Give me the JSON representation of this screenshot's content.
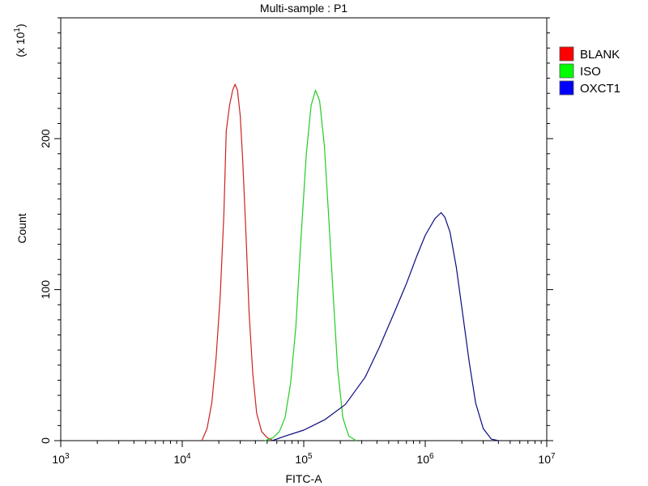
{
  "chart_data": {
    "type": "line",
    "title": "Multi-sample : P1",
    "xlabel": "FITC-A",
    "ylabel": "Count",
    "y_multiplier_label": "(x 10",
    "y_multiplier_exp": "1",
    "x_scale": "log",
    "xlim": [
      1000,
      10000000
    ],
    "ylim": [
      0,
      280
    ],
    "x_ticks": [
      {
        "base": "10",
        "exp": "3",
        "value": 1000
      },
      {
        "base": "10",
        "exp": "4",
        "value": 10000
      },
      {
        "base": "10",
        "exp": "5",
        "value": 100000
      },
      {
        "base": "10",
        "exp": "6",
        "value": 1000000
      },
      {
        "base": "10",
        "exp": "7",
        "value": 10000000
      }
    ],
    "y_ticks": [
      {
        "label": "0",
        "value": 0
      },
      {
        "label": "100",
        "value": 100
      },
      {
        "label": "200",
        "value": 200
      }
    ],
    "grid": false,
    "legend_position": "top-right",
    "series": [
      {
        "name": "BLANK",
        "color": "#cc2222",
        "legend_color": "#ff0000",
        "points": [
          [
            14500,
            0
          ],
          [
            16000,
            8
          ],
          [
            17500,
            25
          ],
          [
            19000,
            55
          ],
          [
            20500,
            95
          ],
          [
            22000,
            150
          ],
          [
            23000,
            205
          ],
          [
            24500,
            222
          ],
          [
            26000,
            232
          ],
          [
            27200,
            236
          ],
          [
            28500,
            232
          ],
          [
            30000,
            215
          ],
          [
            31500,
            185
          ],
          [
            33500,
            135
          ],
          [
            35500,
            85
          ],
          [
            38000,
            45
          ],
          [
            41000,
            18
          ],
          [
            45000,
            6
          ],
          [
            50000,
            2
          ],
          [
            56000,
            0
          ]
        ]
      },
      {
        "name": "ISO",
        "color": "#22cc22",
        "legend_color": "#00ff00",
        "points": [
          [
            48000,
            0
          ],
          [
            56000,
            2
          ],
          [
            63000,
            6
          ],
          [
            70000,
            15
          ],
          [
            78000,
            38
          ],
          [
            86000,
            75
          ],
          [
            95000,
            135
          ],
          [
            105000,
            190
          ],
          [
            115000,
            222
          ],
          [
            125000,
            232
          ],
          [
            135000,
            225
          ],
          [
            148000,
            195
          ],
          [
            160000,
            150
          ],
          [
            175000,
            95
          ],
          [
            190000,
            48
          ],
          [
            210000,
            15
          ],
          [
            235000,
            3
          ],
          [
            270000,
            0
          ]
        ]
      },
      {
        "name": "OXCT1",
        "color": "#0a0a80",
        "legend_color": "#0000ff",
        "points": [
          [
            55000,
            0
          ],
          [
            70000,
            3
          ],
          [
            100000,
            7
          ],
          [
            150000,
            14
          ],
          [
            220000,
            24
          ],
          [
            320000,
            42
          ],
          [
            420000,
            62
          ],
          [
            550000,
            84
          ],
          [
            700000,
            104
          ],
          [
            850000,
            122
          ],
          [
            1000000,
            136
          ],
          [
            1200000,
            147
          ],
          [
            1350000,
            151
          ],
          [
            1450000,
            148
          ],
          [
            1600000,
            138
          ],
          [
            1800000,
            115
          ],
          [
            2000000,
            88
          ],
          [
            2300000,
            52
          ],
          [
            2600000,
            25
          ],
          [
            3000000,
            8
          ],
          [
            3500000,
            1
          ],
          [
            4000000,
            0
          ]
        ]
      }
    ]
  }
}
